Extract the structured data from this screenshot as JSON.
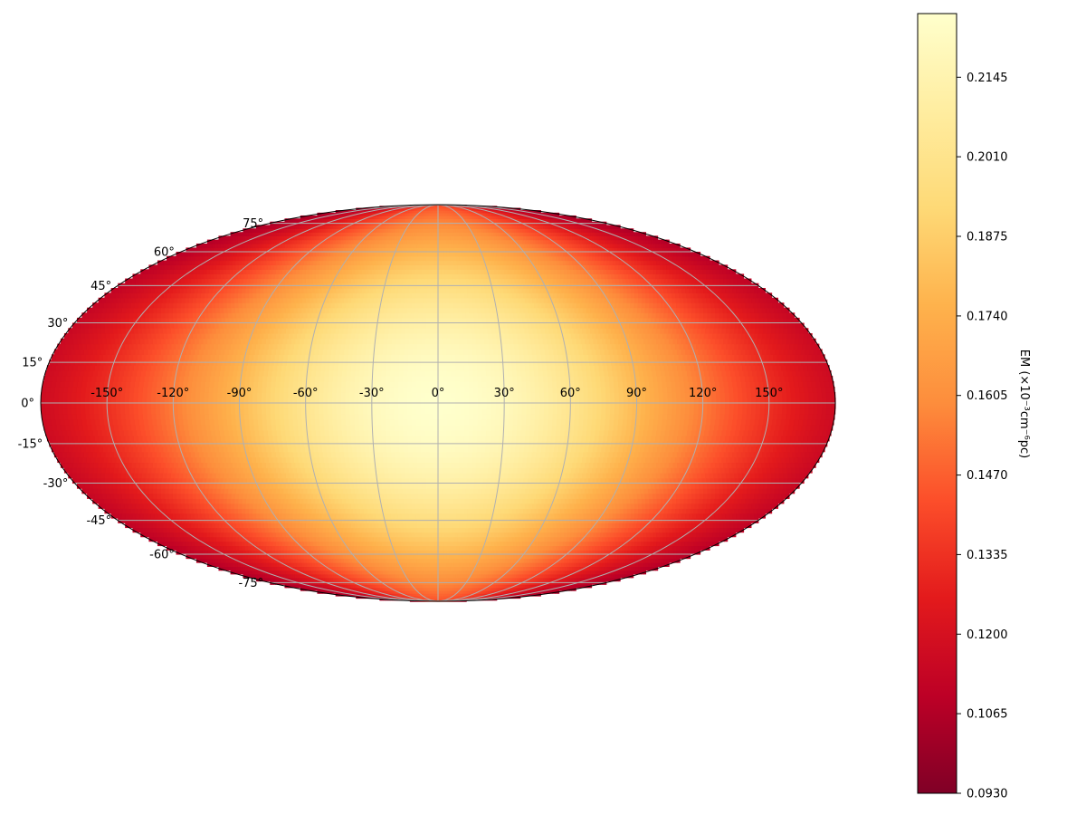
{
  "chart_data": {
    "type": "heatmap",
    "projection": "mollweide",
    "title": "",
    "grid": true,
    "x_ticks": [
      "-150°",
      "-120°",
      "-90°",
      "-60°",
      "-30°",
      "0°",
      "30°",
      "60°",
      "90°",
      "120°",
      "150°"
    ],
    "x_tick_values": [
      -150,
      -120,
      -90,
      -60,
      -30,
      0,
      30,
      60,
      90,
      120,
      150
    ],
    "y_ticks": [
      "75°",
      "60°",
      "45°",
      "30°",
      "15°",
      "0°",
      "-15°",
      "-30°",
      "-45°",
      "-60°",
      "-75°"
    ],
    "y_tick_values": [
      75,
      60,
      45,
      30,
      15,
      0,
      -15,
      -30,
      -45,
      -60,
      -75
    ],
    "xlim": [
      -180,
      180
    ],
    "ylim": [
      -90,
      90
    ],
    "colormap": "YlOrRd_r",
    "colorbar": {
      "label": "EM (×10⁻³cm⁻⁶pc)",
      "min": 0.093,
      "max": 0.2253,
      "ticks": [
        "0.0930",
        "0.1065",
        "0.1200",
        "0.1335",
        "0.1470",
        "0.1605",
        "0.1740",
        "0.1875",
        "0.2010",
        "0.2145"
      ],
      "tick_values": [
        0.093,
        0.1065,
        0.12,
        0.1335,
        0.147,
        0.1605,
        0.174,
        0.1875,
        0.201,
        0.2145
      ],
      "placement": "right"
    },
    "field": {
      "peak_value": 0.2253,
      "peak_at": [
        0,
        0
      ],
      "min_value": 0.093,
      "description_shape": "radial falloff from (0°,0°) center"
    },
    "colors": {
      "stops": [
        "#800026",
        "#bd0026",
        "#e31a1c",
        "#fc4e2a",
        "#fd8d3c",
        "#feb24c",
        "#fed976",
        "#ffeda0",
        "#ffffcc"
      ],
      "grid": "#b0b0b0",
      "frame": "#000000"
    }
  }
}
